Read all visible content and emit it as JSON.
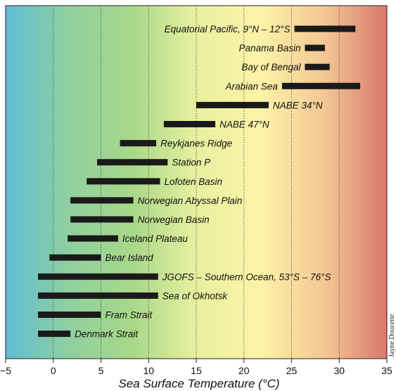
{
  "chart_data": {
    "type": "bar",
    "orientation": "horizontal-range",
    "xlabel": "Sea Surface Temperature (°C)",
    "xlim": [
      -5,
      35
    ],
    "xticks": [
      -5,
      0,
      5,
      10,
      15,
      20,
      25,
      30,
      35
    ],
    "grid": "vertical dotted lines at each tick",
    "credit": "Jayne Doucette",
    "background_gradient": [
      "#5fbcd3",
      "#8fd0a0",
      "#a8d888",
      "#e9f0a0",
      "#fdf3a8",
      "#f4c894",
      "#d9786e"
    ],
    "bar_color": "#1a1a1a",
    "series": [
      {
        "label": "Equatorial Pacific, 9°N – 12°S",
        "range": [
          25.3,
          31.7
        ],
        "label_side": "left"
      },
      {
        "label": "Panama Basin",
        "range": [
          26.4,
          28.5
        ],
        "label_side": "left"
      },
      {
        "label": "Bay of Bengal",
        "range": [
          26.4,
          29.0
        ],
        "label_side": "left"
      },
      {
        "label": "Arabian Sea",
        "range": [
          24.0,
          32.2
        ],
        "label_side": "left"
      },
      {
        "label": "NABE 34°N",
        "range": [
          15.0,
          22.6
        ],
        "label_side": "right"
      },
      {
        "label": "NABE 47°N",
        "range": [
          11.6,
          17.0
        ],
        "label_side": "right"
      },
      {
        "label": "Reykjanes Ridge",
        "range": [
          7.0,
          10.8
        ],
        "label_side": "right"
      },
      {
        "label": "Station P",
        "range": [
          4.6,
          12.0
        ],
        "label_side": "right"
      },
      {
        "label": "Lofoten Basin",
        "range": [
          3.5,
          11.2
        ],
        "label_side": "right"
      },
      {
        "label": "Norwegian Abyssal Plain",
        "range": [
          1.8,
          8.4
        ],
        "label_side": "right"
      },
      {
        "label": "Norwegian Basin",
        "range": [
          1.8,
          8.4
        ],
        "label_side": "right"
      },
      {
        "label": "Iceland Plateau",
        "range": [
          1.5,
          6.8
        ],
        "label_side": "right"
      },
      {
        "label": "Bear Island",
        "range": [
          -0.4,
          5.0
        ],
        "label_side": "right"
      },
      {
        "label": "JGOFS – Southern Ocean, 53°S – 76°S",
        "range": [
          -1.6,
          11.0
        ],
        "label_side": "right"
      },
      {
        "label": "Sea of Okhotsk",
        "range": [
          -1.6,
          11.0
        ],
        "label_side": "right"
      },
      {
        "label": "Fram Strait",
        "range": [
          -1.6,
          5.0
        ],
        "label_side": "right"
      },
      {
        "label": "Denmark Strait",
        "range": [
          -1.6,
          1.8
        ],
        "label_side": "right"
      }
    ]
  }
}
